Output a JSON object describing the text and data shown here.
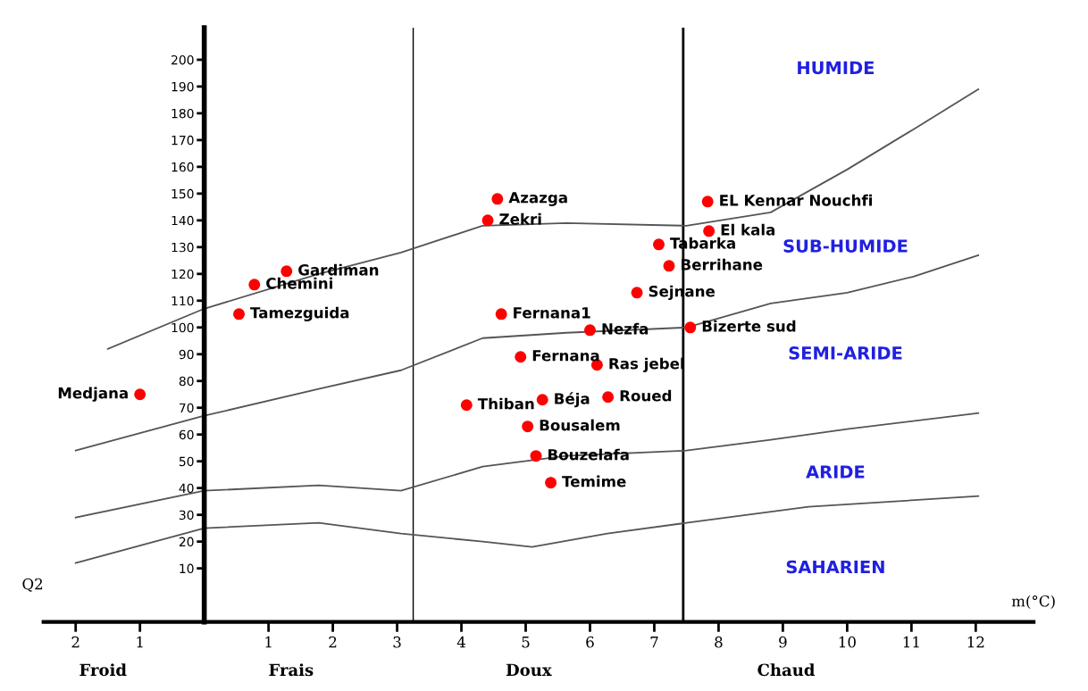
{
  "chart_data": {
    "type": "scatter",
    "xlabel": "m(°C)",
    "ylabel": "Q2",
    "xlim": [
      -2.5,
      12.9
    ],
    "ylim": [
      -10,
      212
    ],
    "xticks": [
      {
        "value": -2,
        "label": "2"
      },
      {
        "value": -1,
        "label": "1"
      },
      1,
      2,
      3,
      4,
      5,
      6,
      7,
      8,
      9,
      10,
      11,
      12
    ],
    "yticks": [
      10,
      20,
      30,
      40,
      50,
      60,
      70,
      80,
      90,
      100,
      110,
      120,
      130,
      140,
      150,
      160,
      170,
      180,
      190,
      200
    ],
    "grid": false,
    "series": [
      {
        "color": "#ff0000",
        "x": [
          -1,
          0.78,
          1.28,
          0.54,
          4.56,
          4.41,
          4.62,
          4.92,
          4.08,
          5.26,
          5.03,
          5.16,
          5.39,
          6.0,
          6.11,
          6.28,
          6.73,
          7.07,
          7.23,
          7.56,
          7.83,
          7.85
        ],
        "values": [
          75,
          116,
          121,
          105,
          148,
          140,
          105,
          89,
          71,
          73,
          63,
          52,
          42,
          99,
          86,
          74,
          113,
          131,
          123,
          100,
          147,
          136
        ]
      },
      {
        "type": "line",
        "color": "#555555",
        "x": [
          -1.5,
          0,
          1.78,
          3.06,
          4.33,
          5.63,
          7.5,
          8.81,
          10,
          11.03,
          12.04
        ],
        "values": [
          92,
          107,
          120,
          128,
          138,
          139,
          138,
          143,
          159,
          174,
          189
        ]
      },
      {
        "type": "line",
        "color": "#555555",
        "x": [
          -2,
          0,
          1.78,
          3.06,
          4.33,
          5.63,
          7.5,
          8.81,
          10,
          11.03,
          12.04
        ],
        "values": [
          54,
          67,
          77,
          84,
          96,
          98,
          100,
          109,
          113,
          119,
          127
        ]
      },
      {
        "type": "line",
        "color": "#555555",
        "x": [
          -2,
          0,
          1.78,
          3.06,
          4.33,
          5.63,
          7.5,
          8.81,
          10,
          12.04
        ],
        "values": [
          29,
          39,
          41,
          39,
          48,
          52,
          54,
          58,
          62,
          68
        ]
      },
      {
        "type": "line",
        "color": "#555555",
        "x": [
          -2,
          0,
          1.78,
          3.06,
          4.33,
          5.1,
          6.27,
          7.5,
          9.4,
          12.04
        ],
        "values": [
          12,
          25,
          27,
          23,
          20,
          18,
          23,
          27,
          33,
          37
        ]
      }
    ],
    "ref_lines": [
      {
        "axis": "x",
        "value": 3.25,
        "color": "#000000"
      },
      {
        "axis": "x",
        "value": 7.45,
        "color": "#000000"
      }
    ],
    "annotations": [
      {
        "text": "Medjana",
        "x": -1,
        "y": 75
      },
      {
        "text": "Chemini",
        "x": 0.78,
        "y": 116
      },
      {
        "text": "Gardiman",
        "x": 1.28,
        "y": 121
      },
      {
        "text": "Tamezguida",
        "x": 0.54,
        "y": 105
      },
      {
        "text": "Azazga",
        "x": 4.56,
        "y": 148
      },
      {
        "text": "Zekri",
        "x": 4.41,
        "y": 140
      },
      {
        "text": "Fernana1",
        "x": 4.62,
        "y": 105
      },
      {
        "text": "Fernana",
        "x": 4.92,
        "y": 89
      },
      {
        "text": "Thiban",
        "x": 4.08,
        "y": 71
      },
      {
        "text": "Béja",
        "x": 5.26,
        "y": 73
      },
      {
        "text": "Bousalem",
        "x": 5.03,
        "y": 63
      },
      {
        "text": "Bouzelafa",
        "x": 5.16,
        "y": 52
      },
      {
        "text": "Temime",
        "x": 5.39,
        "y": 42
      },
      {
        "text": "Nezfa",
        "x": 6.0,
        "y": 99
      },
      {
        "text": "Ras jebel",
        "x": 6.11,
        "y": 86
      },
      {
        "text": "Roued",
        "x": 6.28,
        "y": 74
      },
      {
        "text": "Sejnane",
        "x": 6.73,
        "y": 113
      },
      {
        "text": "Tabarka",
        "x": 7.07,
        "y": 131
      },
      {
        "text": "Berrihane",
        "x": 7.23,
        "y": 123
      },
      {
        "text": "Bizerte sud",
        "x": 7.56,
        "y": 100
      },
      {
        "text": "EL Kennar Nouchfi",
        "x": 7.83,
        "y": 147
      },
      {
        "text": "El kala",
        "x": 7.85,
        "y": 136
      },
      "HUMIDE",
      "SUB-HUMIDE",
      "SEMI-ARIDE",
      "ARIDE",
      "SAHARIEN",
      "Froid",
      "Frais",
      "Doux",
      "Chaud"
    ]
  }
}
